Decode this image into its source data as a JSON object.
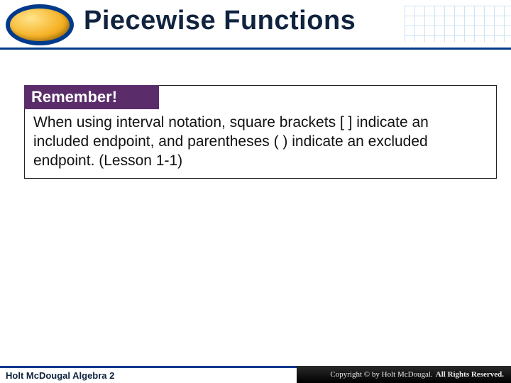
{
  "header": {
    "title": "Piecewise Functions",
    "accent_color": "#003a8c",
    "badge_gradient_start": "#ffe48a",
    "badge_gradient_mid": "#f6b42a",
    "badge_gradient_end": "#d68a00"
  },
  "callout": {
    "title": "Remember!",
    "title_bg": "#5a2d6a",
    "body": "When using interval notation, square brackets [ ] indicate an included endpoint, and parentheses ( ) indicate an excluded endpoint. (Lesson 1-1)"
  },
  "footer": {
    "left": "Holt McDougal Algebra 2",
    "copyright": "Copyright © by Holt McDougal. ",
    "brand": "All Rights Reserved."
  }
}
